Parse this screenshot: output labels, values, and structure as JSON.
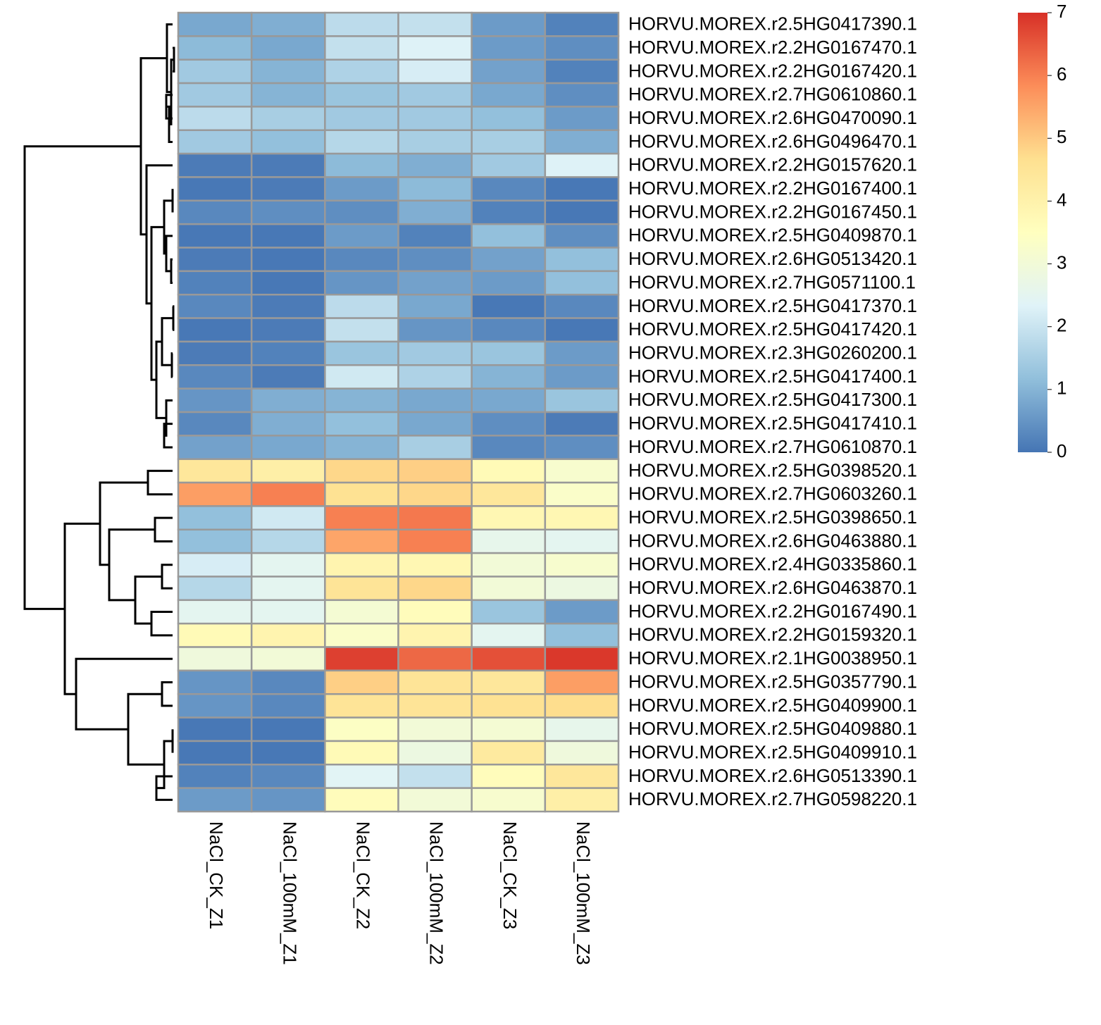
{
  "chart_data": {
    "type": "heatmap",
    "columns": [
      "NaCl_CK_Z1",
      "NaCl_100mM_Z1",
      "NaCl_CK_Z2",
      "NaCl_100mM_Z2",
      "NaCl_CK_Z3",
      "NaCl_100mM_Z3"
    ],
    "rows": [
      "HORVU.MOREX.r2.5HG0417390.1",
      "HORVU.MOREX.r2.2HG0167470.1",
      "HORVU.MOREX.r2.2HG0167420.1",
      "HORVU.MOREX.r2.7HG0610860.1",
      "HORVU.MOREX.r2.6HG0470090.1",
      "HORVU.MOREX.r2.6HG0496470.1",
      "HORVU.MOREX.r2.2HG0157620.1",
      "HORVU.MOREX.r2.2HG0167400.1",
      "HORVU.MOREX.r2.2HG0167450.1",
      "HORVU.MOREX.r2.5HG0409870.1",
      "HORVU.MOREX.r2.6HG0513420.1",
      "HORVU.MOREX.r2.7HG0571100.1",
      "HORVU.MOREX.r2.5HG0417370.1",
      "HORVU.MOREX.r2.5HG0417420.1",
      "HORVU.MOREX.r2.3HG0260200.1",
      "HORVU.MOREX.r2.5HG0417400.1",
      "HORVU.MOREX.r2.5HG0417300.1",
      "HORVU.MOREX.r2.5HG0417410.1",
      "HORVU.MOREX.r2.7HG0610870.1",
      "HORVU.MOREX.r2.5HG0398520.1",
      "HORVU.MOREX.r2.7HG0603260.1",
      "HORVU.MOREX.r2.5HG0398650.1",
      "HORVU.MOREX.r2.6HG0463880.1",
      "HORVU.MOREX.r2.4HG0335860.1",
      "HORVU.MOREX.r2.6HG0463870.1",
      "HORVU.MOREX.r2.2HG0167490.1",
      "HORVU.MOREX.r2.2HG0159320.1",
      "HORVU.MOREX.r2.1HG0038950.1",
      "HORVU.MOREX.r2.5HG0357790.1",
      "HORVU.MOREX.r2.5HG0409900.1",
      "HORVU.MOREX.r2.5HG0409880.1",
      "HORVU.MOREX.r2.5HG0409910.1",
      "HORVU.MOREX.r2.6HG0513390.1",
      "HORVU.MOREX.r2.7HG0598220.1"
    ],
    "values": [
      [
        0.8,
        0.9,
        1.8,
        1.9,
        0.6,
        0.2
      ],
      [
        1.1,
        0.8,
        1.9,
        2.3,
        0.6,
        0.4
      ],
      [
        1.4,
        1.0,
        1.6,
        2.2,
        0.7,
        0.2
      ],
      [
        1.4,
        1.0,
        1.3,
        1.4,
        0.8,
        0.4
      ],
      [
        1.8,
        1.5,
        1.4,
        1.4,
        1.2,
        0.6
      ],
      [
        1.4,
        1.2,
        1.7,
        1.5,
        1.5,
        0.9
      ],
      [
        0.1,
        0.1,
        1.1,
        0.9,
        1.4,
        2.3
      ],
      [
        0.05,
        0.1,
        0.6,
        1.1,
        0.3,
        0.05
      ],
      [
        0.3,
        0.4,
        0.4,
        0.9,
        0.2,
        0.05
      ],
      [
        0.05,
        0.05,
        0.6,
        0.2,
        1.2,
        0.4
      ],
      [
        0.1,
        0.05,
        0.3,
        0.4,
        0.7,
        1.2
      ],
      [
        0.2,
        0.05,
        0.5,
        0.7,
        0.6,
        1.2
      ],
      [
        0.3,
        0.1,
        1.8,
        0.8,
        0.05,
        0.3
      ],
      [
        0.05,
        0.1,
        1.9,
        0.5,
        0.3,
        0.05
      ],
      [
        0.1,
        0.2,
        1.3,
        1.4,
        1.3,
        0.6
      ],
      [
        0.3,
        0.1,
        2.1,
        1.6,
        1.0,
        0.6
      ],
      [
        0.5,
        0.9,
        1.0,
        0.8,
        0.8,
        1.3
      ],
      [
        0.3,
        0.9,
        1.2,
        0.8,
        0.4,
        0.1
      ],
      [
        0.7,
        0.8,
        1.0,
        1.5,
        0.3,
        0.4
      ],
      [
        4.4,
        4.1,
        4.8,
        4.9,
        3.7,
        3.2
      ],
      [
        5.6,
        6.0,
        4.6,
        4.8,
        4.4,
        3.3
      ],
      [
        1.2,
        2.1,
        6.0,
        6.1,
        3.8,
        3.8
      ],
      [
        1.2,
        1.7,
        5.5,
        6.0,
        2.6,
        2.5
      ],
      [
        2.2,
        2.5,
        3.9,
        3.8,
        3.0,
        3.2
      ],
      [
        1.7,
        2.5,
        4.5,
        4.8,
        3.0,
        2.8
      ],
      [
        2.5,
        2.5,
        3.1,
        3.6,
        1.3,
        0.6
      ],
      [
        3.7,
        3.9,
        3.3,
        3.9,
        2.5,
        1.2
      ],
      [
        2.9,
        3.0,
        6.8,
        6.3,
        6.6,
        6.9
      ],
      [
        0.5,
        0.3,
        4.9,
        4.5,
        4.4,
        5.6
      ],
      [
        0.5,
        0.3,
        4.5,
        4.5,
        4.6,
        4.7
      ],
      [
        0.05,
        0.05,
        3.4,
        3.0,
        3.1,
        2.6
      ],
      [
        0.05,
        0.05,
        3.7,
        2.8,
        4.3,
        2.9
      ],
      [
        0.2,
        0.3,
        2.4,
        1.9,
        3.6,
        4.4
      ],
      [
        0.6,
        0.5,
        3.6,
        3.0,
        3.2,
        4.1
      ]
    ],
    "zlim": [
      0,
      7
    ],
    "zticks": [
      0,
      1,
      2,
      3,
      4,
      5,
      6,
      7
    ],
    "colors": [
      "#4575B4",
      "#91BFDB",
      "#E0F3F8",
      "#FFFFBF",
      "#FEE090",
      "#FC8D59",
      "#D73027"
    ]
  }
}
